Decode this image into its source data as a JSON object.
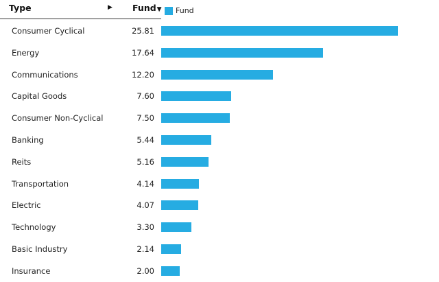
{
  "header": {
    "type_label": "Type",
    "type_sort_arrow": "▶",
    "fund_label": "Fund",
    "fund_sort_arrow": "▼"
  },
  "legend": {
    "label": "Fund",
    "color": "#26ace2"
  },
  "chart_data": {
    "type": "bar",
    "orientation": "horizontal",
    "categories": [
      "Consumer Cyclical",
      "Energy",
      "Communications",
      "Capital Goods",
      "Consumer Non-Cyclical",
      "Banking",
      "Reits",
      "Transportation",
      "Electric",
      "Technology",
      "Basic Industry",
      "Insurance"
    ],
    "value_labels": [
      "25.81",
      "17.64",
      "12.20",
      "7.60",
      "7.50",
      "5.44",
      "5.16",
      "4.14",
      "4.07",
      "3.30",
      "2.14",
      "2.00"
    ],
    "series": [
      {
        "name": "Fund",
        "color": "#26ace2",
        "values": [
          25.81,
          17.64,
          12.2,
          7.6,
          7.5,
          5.44,
          5.16,
          4.14,
          4.07,
          3.3,
          2.14,
          2.0
        ]
      }
    ],
    "xlim": [
      0,
      30
    ],
    "grid": false,
    "legend_position": "top-left"
  }
}
